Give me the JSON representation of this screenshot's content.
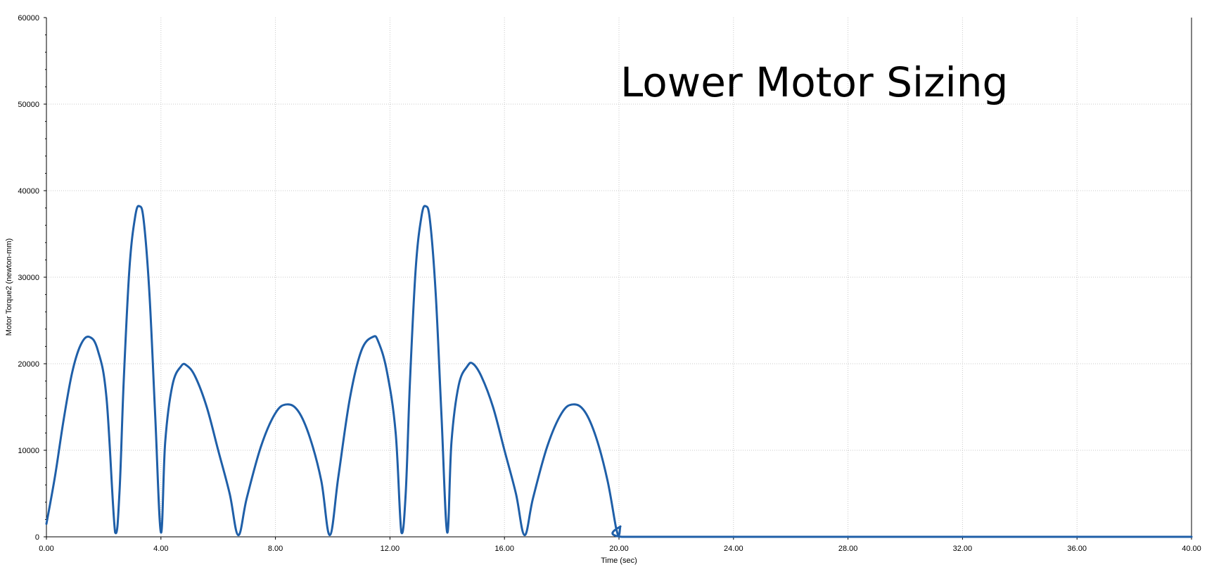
{
  "chart_data": {
    "type": "line",
    "title": "",
    "annotation": "Lower Motor Sizing",
    "xlabel": "Time (sec)",
    "ylabel": "Motor Torque2 (newton-mm)",
    "xlim": [
      0,
      40
    ],
    "ylim": [
      0,
      60000
    ],
    "x_ticks": [
      "0.00",
      "4.00",
      "8.00",
      "12.00",
      "16.00",
      "20.00",
      "24.00",
      "28.00",
      "32.00",
      "36.00",
      "40.00"
    ],
    "y_ticks": [
      "0",
      "10000",
      "20000",
      "30000",
      "40000",
      "50000",
      "60000"
    ],
    "grid": true,
    "series": [
      {
        "color": "#1f5fa8",
        "x": [
          0.0,
          0.3,
          0.6,
          0.9,
          1.2,
          1.5,
          1.8,
          2.1,
          2.4,
          2.55,
          2.7,
          2.9,
          3.1,
          3.25,
          3.4,
          3.6,
          3.8,
          4.0,
          4.15,
          4.4,
          4.7,
          4.9,
          5.2,
          5.6,
          6.0,
          6.4,
          6.7,
          7.0,
          7.5,
          8.0,
          8.4,
          8.8,
          9.2,
          9.6,
          9.9,
          10.2,
          10.6,
          11.0,
          11.4,
          11.6,
          11.9,
          12.2,
          12.4,
          12.55,
          12.7,
          12.9,
          13.1,
          13.25,
          13.4,
          13.6,
          13.8,
          14.0,
          14.15,
          14.4,
          14.7,
          14.9,
          15.2,
          15.6,
          16.0,
          16.4,
          16.7,
          17.0,
          17.5,
          18.0,
          18.4,
          18.8,
          19.2,
          19.6,
          19.9,
          20.0,
          20.05,
          20.1,
          24.0,
          28.0,
          32.0,
          36.0,
          40.0
        ],
        "y": [
          1500,
          7000,
          13500,
          19000,
          22200,
          23100,
          21500,
          16000,
          500,
          5000,
          18000,
          31000,
          37000,
          38200,
          36500,
          28000,
          14000,
          500,
          11000,
          17500,
          19700,
          19800,
          18500,
          15000,
          10000,
          5000,
          200,
          4500,
          10500,
          14300,
          15300,
          14500,
          11500,
          6500,
          200,
          7000,
          16000,
          21500,
          23100,
          22500,
          19000,
          12000,
          500,
          5000,
          18000,
          31000,
          37000,
          38200,
          36500,
          28000,
          14000,
          500,
          11000,
          17500,
          19700,
          20000,
          18500,
          15000,
          10000,
          5000,
          200,
          4500,
          10500,
          14300,
          15300,
          14500,
          11500,
          6500,
          1000,
          200,
          1200,
          0,
          0,
          0,
          0,
          0,
          0
        ]
      }
    ]
  }
}
